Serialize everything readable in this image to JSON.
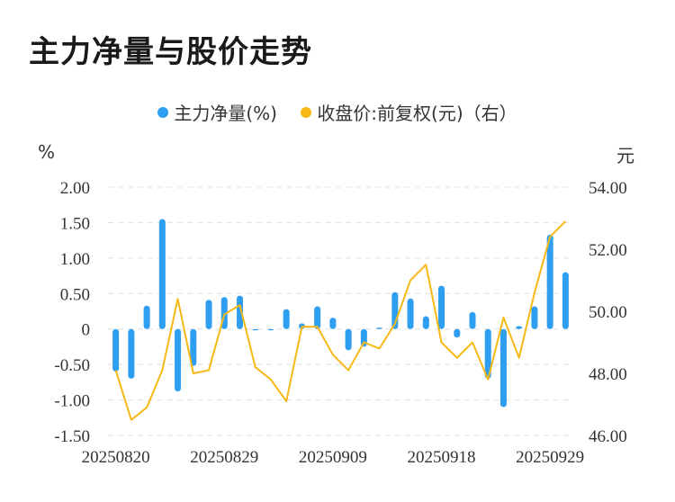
{
  "title": "主力净量与股价走势",
  "legend": {
    "bar_label": "主力净量(%)",
    "line_label": "收盘价:前复权(元)（右）"
  },
  "units": {
    "left": "%",
    "right": "元"
  },
  "colors": {
    "bar": "#2e9ef0",
    "line": "#f5b814",
    "grid": "#e0e0e0"
  },
  "chart_data": {
    "type": "bar+line",
    "x_tick_labels": [
      "20250820",
      "20250829",
      "20250909",
      "20250918",
      "20250929"
    ],
    "x_tick_indices": [
      0,
      7,
      14,
      21,
      28
    ],
    "left_axis": {
      "min": -1.5,
      "max": 2.0,
      "ticks": [
        "2.00",
        "1.50",
        "1.00",
        "0.50",
        "0",
        "-0.50",
        "-1.00",
        "-1.50"
      ],
      "values": [
        2.0,
        1.5,
        1.0,
        0.5,
        0,
        -0.5,
        -1.0,
        -1.5
      ]
    },
    "right_axis": {
      "min": 46.0,
      "max": 54.0,
      "ticks": [
        "54.00",
        "52.00",
        "50.00",
        "48.00",
        "46.00"
      ],
      "values": [
        54,
        52,
        50,
        48,
        46
      ]
    },
    "series": [
      {
        "name": "主力净量(%)",
        "type": "bar",
        "axis": "left",
        "values": [
          -0.6,
          -0.7,
          0.33,
          1.55,
          -0.88,
          -0.52,
          0.41,
          0.45,
          0.47,
          -0.02,
          -0.02,
          0.28,
          0.08,
          0.32,
          0.16,
          -0.3,
          -0.25,
          0.02,
          0.52,
          0.43,
          0.18,
          0.61,
          -0.12,
          0.24,
          -0.7,
          -1.1,
          0.04,
          0.32,
          1.33,
          0.8
        ]
      },
      {
        "name": "收盘价:前复权(元)（右）",
        "type": "line",
        "axis": "right",
        "values": [
          48.1,
          46.5,
          46.9,
          48.1,
          50.4,
          48.0,
          48.1,
          49.9,
          50.2,
          48.2,
          47.8,
          47.1,
          49.5,
          49.5,
          48.6,
          48.1,
          49.0,
          48.8,
          49.6,
          51.0,
          51.5,
          49.0,
          48.5,
          49.0,
          47.8,
          49.8,
          48.5,
          50.6,
          52.4,
          52.9
        ]
      }
    ]
  }
}
